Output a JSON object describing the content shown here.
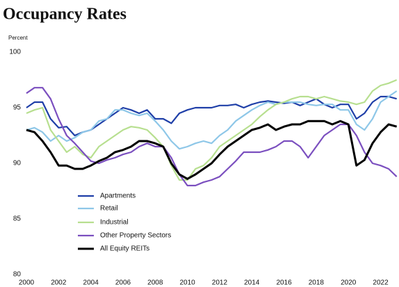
{
  "chart_data": {
    "type": "line",
    "title": "Occupancy Rates",
    "ylabel": "Percent",
    "x": [
      2000,
      2000.5,
      2001,
      2001.5,
      2002,
      2002.5,
      2003,
      2003.5,
      2004,
      2004.5,
      2005,
      2005.5,
      2006,
      2006.5,
      2007,
      2007.5,
      2008,
      2008.5,
      2009,
      2009.5,
      2010,
      2010.5,
      2011,
      2011.5,
      2012,
      2012.5,
      2013,
      2013.5,
      2014,
      2014.5,
      2015,
      2015.5,
      2016,
      2016.5,
      2017,
      2017.5,
      2018,
      2018.5,
      2019,
      2019.5,
      2020,
      2020.5,
      2021,
      2021.5,
      2022,
      2022.5,
      2023
    ],
    "xlim": [
      2000,
      2023.1
    ],
    "xticks": [
      2000,
      2002,
      2004,
      2006,
      2008,
      2010,
      2012,
      2014,
      2016,
      2018,
      2020,
      2022
    ],
    "ylim": [
      80,
      100
    ],
    "yticks": [
      80,
      85,
      90,
      95,
      100
    ],
    "grid": false,
    "legend": "lower left",
    "series": [
      {
        "name": "Apartments",
        "color": "#1f3fa8",
        "values": [
          95,
          95.5,
          95.5,
          94,
          93.2,
          93.3,
          92.5,
          92.8,
          93,
          93.5,
          94,
          94.5,
          95,
          94.8,
          94.5,
          94.8,
          94,
          94,
          93.6,
          94.5,
          94.8,
          95,
          95,
          95,
          95.2,
          95.2,
          95.3,
          95,
          95.3,
          95.5,
          95.6,
          95.5,
          95.4,
          95.5,
          95.2,
          95.5,
          95.8,
          95.3,
          95,
          95.3,
          95.3,
          94,
          94.5,
          95.5,
          96,
          96,
          95.8
        ]
      },
      {
        "name": "Retail",
        "color": "#8ec7e8",
        "values": [
          93,
          93.2,
          92.8,
          92,
          92.5,
          92,
          92.3,
          92.8,
          93,
          93.8,
          94,
          94.8,
          94.8,
          94.5,
          94.3,
          94.5,
          93.8,
          93,
          92,
          91.3,
          91.5,
          91.8,
          92,
          91.8,
          92.5,
          93,
          93.8,
          94.3,
          94.8,
          95.2,
          95.5,
          95.3,
          95.5,
          95.5,
          95.5,
          95.3,
          95.2,
          95.3,
          95.3,
          94.8,
          94.8,
          93.5,
          93,
          94,
          95.5,
          96,
          96.5
        ]
      },
      {
        "name": "Industrial",
        "color": "#b7df8f",
        "values": [
          94.5,
          94.8,
          95,
          93,
          92,
          91,
          91.5,
          90.8,
          90.5,
          91.5,
          92,
          92.5,
          93,
          93.3,
          93.2,
          93,
          92.3,
          91.5,
          89.8,
          88.5,
          88.5,
          89.5,
          89.8,
          90.5,
          91.5,
          92,
          92.5,
          93,
          93.5,
          94.2,
          94.8,
          95.3,
          95.5,
          95.8,
          96,
          96,
          95.8,
          96,
          95.8,
          95.6,
          95.5,
          95.3,
          95.5,
          96.5,
          97,
          97.2,
          97.5
        ]
      },
      {
        "name": "Other Property Sectors",
        "color": "#7b4fbf",
        "values": [
          96.3,
          96.8,
          96.8,
          95.8,
          94,
          92.5,
          91.8,
          91,
          90.2,
          90,
          90.3,
          90.5,
          90.8,
          91,
          91.5,
          91.8,
          91.5,
          91.5,
          90.5,
          89,
          88,
          88,
          88.3,
          88.5,
          88.8,
          89.5,
          90.2,
          91,
          91,
          91,
          91.2,
          91.5,
          92,
          92,
          91.5,
          90.5,
          91.5,
          92.5,
          93,
          93.5,
          93.5,
          92.5,
          91,
          90,
          89.8,
          89.5,
          88.8
        ]
      },
      {
        "name": "All Equity REITs",
        "color": "#000000",
        "values": [
          93,
          92.8,
          92,
          91,
          89.8,
          89.8,
          89.5,
          89.5,
          89.8,
          90.2,
          90.5,
          91,
          91.2,
          91.5,
          92,
          92,
          91.8,
          91.5,
          90,
          89,
          88.6,
          89,
          89.5,
          90,
          90.8,
          91.5,
          92,
          92.5,
          93,
          93.2,
          93.5,
          93,
          93.3,
          93.5,
          93.5,
          93.8,
          93.8,
          93.8,
          93.5,
          93.8,
          93.5,
          89.8,
          90.3,
          91.8,
          92.8,
          93.5,
          93.3
        ]
      }
    ]
  }
}
